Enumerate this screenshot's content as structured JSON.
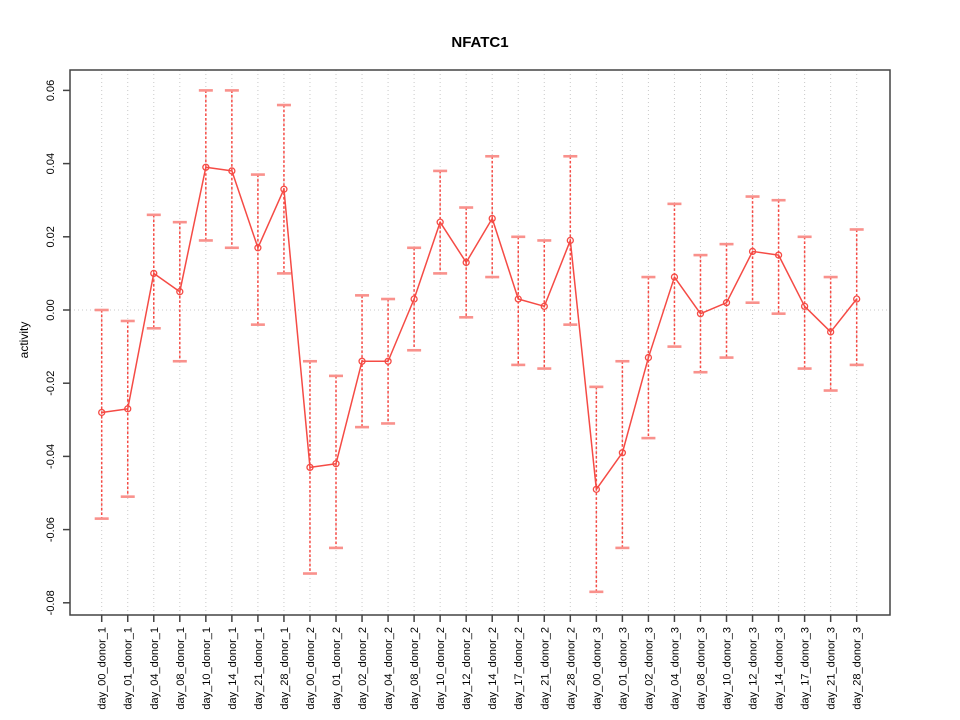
{
  "chart_data": {
    "type": "line",
    "title": "NFATC1",
    "ylabel": "activity",
    "xlabel": "",
    "categories": [
      "day_00_donor_1",
      "day_01_donor_1",
      "day_04_donor_1",
      "day_08_donor_1",
      "day_10_donor_1",
      "day_14_donor_1",
      "day_21_donor_1",
      "day_28_donor_1",
      "day_00_donor_2",
      "day_01_donor_2",
      "day_02_donor_2",
      "day_04_donor_2",
      "day_08_donor_2",
      "day_10_donor_2",
      "day_12_donor_2",
      "day_14_donor_2",
      "day_17_donor_2",
      "day_21_donor_2",
      "day_28_donor_2",
      "day_00_donor_3",
      "day_01_donor_3",
      "day_02_donor_3",
      "day_04_donor_3",
      "day_08_donor_3",
      "day_10_donor_3",
      "day_12_donor_3",
      "day_14_donor_3",
      "day_17_donor_3",
      "day_21_donor_3",
      "day_28_donor_3"
    ],
    "series": [
      {
        "name": "NFATC1 activity",
        "color": "#f54b45",
        "values": [
          -0.028,
          -0.027,
          0.01,
          0.005,
          0.039,
          0.038,
          0.017,
          0.033,
          -0.043,
          -0.042,
          -0.014,
          -0.014,
          0.003,
          0.024,
          0.013,
          0.025,
          0.003,
          0.001,
          0.019,
          -0.049,
          -0.039,
          -0.013,
          0.009,
          -0.001,
          0.002,
          0.016,
          0.015,
          0.001,
          -0.006,
          0.003
        ],
        "error_low": [
          -0.057,
          -0.051,
          -0.005,
          -0.014,
          0.019,
          0.017,
          -0.004,
          0.01,
          -0.072,
          -0.065,
          -0.032,
          -0.031,
          -0.011,
          0.01,
          -0.002,
          0.009,
          -0.015,
          -0.016,
          -0.004,
          -0.077,
          -0.065,
          -0.035,
          -0.01,
          -0.017,
          -0.013,
          0.002,
          -0.001,
          -0.016,
          -0.022,
          -0.015
        ],
        "error_high": [
          0.0,
          -0.003,
          0.026,
          0.024,
          0.06,
          0.06,
          0.037,
          0.056,
          -0.014,
          -0.018,
          0.004,
          0.003,
          0.017,
          0.038,
          0.028,
          0.042,
          0.02,
          0.019,
          0.042,
          -0.021,
          -0.014,
          0.009,
          0.029,
          0.015,
          0.018,
          0.031,
          0.03,
          0.02,
          0.009,
          0.022
        ]
      }
    ],
    "y_ticks": [
      "0.06",
      "0.04",
      "0.02",
      "0.00",
      "-0.02",
      "-0.04",
      "-0.06",
      "-0.08"
    ],
    "ylim": [
      -0.0835,
      0.0655
    ],
    "grid": {
      "vertical_dotted_per_category": true,
      "horizontal_dotted_at_zero": true
    },
    "legend": "none",
    "marker": "open-circle",
    "error_bars": true,
    "colors": {
      "series": "#f54b45",
      "error_cap": "#f9918c",
      "gridline": "#c9c9c9",
      "axis": "#434343",
      "background": "#ffffff"
    }
  }
}
